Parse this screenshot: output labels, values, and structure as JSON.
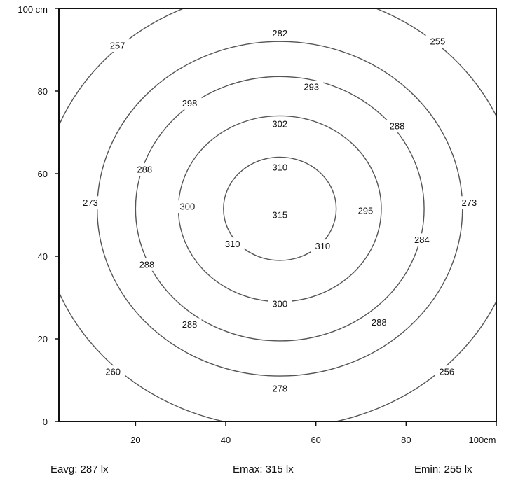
{
  "chart_data": {
    "type": "contour",
    "title": "",
    "xlabel": "",
    "ylabel": "",
    "xlim": [
      3,
      100
    ],
    "ylim": [
      0,
      100
    ],
    "x_ticks": [
      {
        "value": 20,
        "label": "20"
      },
      {
        "value": 40,
        "label": "40"
      },
      {
        "value": 60,
        "label": "60"
      },
      {
        "value": 80,
        "label": "80"
      },
      {
        "value": 100,
        "label": "100cm"
      }
    ],
    "y_ticks": [
      {
        "value": 0,
        "label": "0"
      },
      {
        "value": 20,
        "label": "20"
      },
      {
        "value": 40,
        "label": "40"
      },
      {
        "value": 60,
        "label": "60"
      },
      {
        "value": 80,
        "label": "80"
      },
      {
        "value": 100,
        "label": "100 cm"
      }
    ],
    "grid": false,
    "center": [
      52,
      51.5
    ],
    "contours": [
      {
        "radius": 12.5
      },
      {
        "radius": 22.5
      },
      {
        "radius": 32
      },
      {
        "radius": 40.5
      },
      {
        "radius": 53
      }
    ],
    "labels": [
      {
        "text": "315",
        "x": 52,
        "y": 50
      },
      {
        "text": "310",
        "x": 52,
        "y": 61.5
      },
      {
        "text": "310",
        "x": 41.5,
        "y": 43
      },
      {
        "text": "310",
        "x": 61.5,
        "y": 42.5
      },
      {
        "text": "302",
        "x": 52,
        "y": 72
      },
      {
        "text": "300",
        "x": 31.5,
        "y": 52
      },
      {
        "text": "300",
        "x": 52,
        "y": 28.5
      },
      {
        "text": "295",
        "x": 71,
        "y": 51
      },
      {
        "text": "293",
        "x": 59,
        "y": 81
      },
      {
        "text": "298",
        "x": 32,
        "y": 77
      },
      {
        "text": "288",
        "x": 22,
        "y": 61
      },
      {
        "text": "288",
        "x": 22.5,
        "y": 38
      },
      {
        "text": "288",
        "x": 32,
        "y": 23.5
      },
      {
        "text": "288",
        "x": 74,
        "y": 24
      },
      {
        "text": "284",
        "x": 83.5,
        "y": 44
      },
      {
        "text": "288",
        "x": 78,
        "y": 71.5
      },
      {
        "text": "282",
        "x": 52,
        "y": 94
      },
      {
        "text": "273",
        "x": 10,
        "y": 53
      },
      {
        "text": "273",
        "x": 94,
        "y": 53
      },
      {
        "text": "278",
        "x": 52,
        "y": 8
      },
      {
        "text": "257",
        "x": 16,
        "y": 91
      },
      {
        "text": "255",
        "x": 87,
        "y": 92
      },
      {
        "text": "260",
        "x": 15,
        "y": 12
      },
      {
        "text": "256",
        "x": 89,
        "y": 12
      }
    ]
  },
  "stats": {
    "eavg": "Eavg: 287 lx",
    "emax": "Emax: 315 lx",
    "emin": "Emin: 255 lx"
  }
}
